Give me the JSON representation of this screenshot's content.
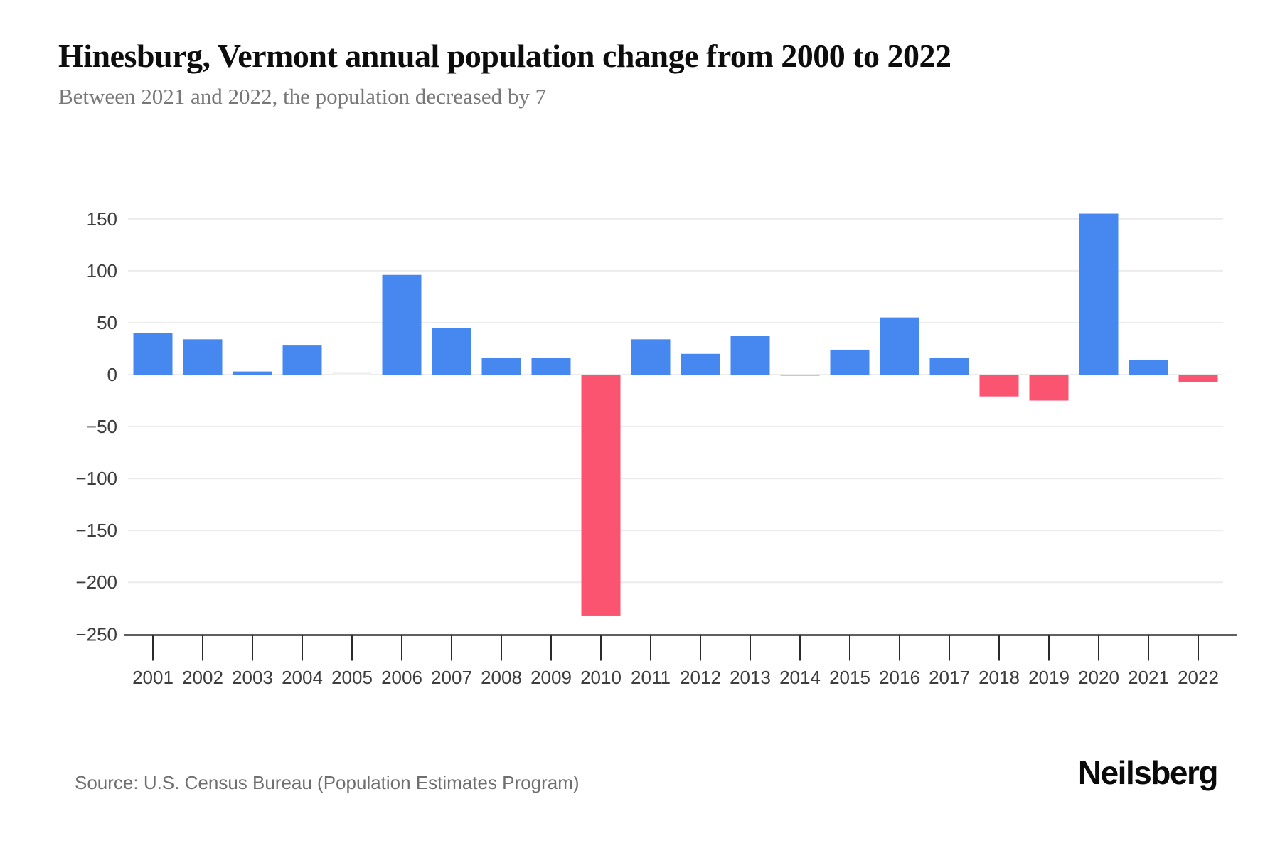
{
  "header": {
    "title": "Hinesburg, Vermont annual population change from 2000 to 2022",
    "subtitle": "Between 2021 and 2022, the population decreased by 7"
  },
  "chart_data": {
    "type": "bar",
    "title": "Hinesburg, Vermont annual population change from 2000 to 2022",
    "categories": [
      "2001",
      "2002",
      "2003",
      "2004",
      "2005",
      "2006",
      "2007",
      "2008",
      "2009",
      "2010",
      "2011",
      "2012",
      "2013",
      "2014",
      "2015",
      "2016",
      "2017",
      "2018",
      "2019",
      "2020",
      "2021",
      "2022"
    ],
    "values": [
      40,
      34,
      3,
      28,
      0,
      96,
      45,
      16,
      16,
      -232,
      34,
      20,
      37,
      -1,
      24,
      55,
      16,
      -21,
      -25,
      155,
      14,
      -7
    ],
    "xlabel": "",
    "ylabel": "",
    "ylim": [
      -250,
      150
    ],
    "ytick_step": 50,
    "grid": true,
    "legend_position": "none",
    "positive_color": "#4687f0",
    "negative_color": "#fa5470",
    "zero_bar_color": "#f1f1f1",
    "gridline_color": "#ececec",
    "axis_color": "#2a2a2a",
    "tick_label_color": "#3d3d3d"
  },
  "footer": {
    "source": "Source: U.S. Census Bureau (Population Estimates Program)",
    "brand": "Neilsberg"
  }
}
